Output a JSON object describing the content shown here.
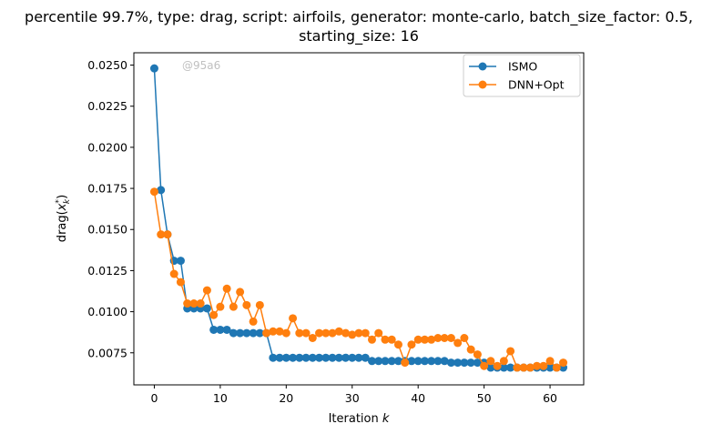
{
  "chart_data": {
    "type": "line",
    "title_line1": "percentile 99.7%, type: drag, script: airfoils, generator: monte-carlo, batch_size_factor: 0.5,",
    "title_line2": "starting_size: 16",
    "xlabel_prefix": "Iteration ",
    "xlabel_var": "k",
    "ylabel_prefix": "drag(",
    "ylabel_var": "x",
    "ylabel_sub": "k",
    "ylabel_sup": "*",
    "ylabel_suffix": ")",
    "watermark": "@95a6",
    "xlim": [
      -3.1,
      65.1
    ],
    "ylim": [
      0.00555,
      0.02575
    ],
    "xticks": [
      0,
      10,
      20,
      30,
      40,
      50,
      60
    ],
    "xtick_labels": [
      "0",
      "10",
      "20",
      "30",
      "40",
      "50",
      "60"
    ],
    "yticks": [
      0.0075,
      0.01,
      0.0125,
      0.015,
      0.0175,
      0.02,
      0.0225,
      0.025
    ],
    "ytick_labels": [
      "0.0075",
      "0.0100",
      "0.0125",
      "0.0150",
      "0.0175",
      "0.0200",
      "0.0225",
      "0.0250"
    ],
    "grid": false,
    "legend_position": "top-right",
    "series": [
      {
        "name": "ISMO",
        "color": "#1f77b4",
        "x": [
          0,
          1,
          2,
          3,
          4,
          5,
          6,
          7,
          8,
          9,
          10,
          11,
          12,
          13,
          14,
          15,
          16,
          17,
          18,
          19,
          20,
          21,
          22,
          23,
          24,
          25,
          26,
          27,
          28,
          29,
          30,
          31,
          32,
          33,
          34,
          35,
          36,
          37,
          38,
          39,
          40,
          41,
          42,
          43,
          44,
          45,
          46,
          47,
          48,
          49,
          50,
          51,
          52,
          53,
          54,
          55,
          56,
          57,
          58,
          59,
          60,
          61,
          62
        ],
        "y": [
          0.0248,
          0.0174,
          0.0147,
          0.0131,
          0.0131,
          0.0102,
          0.0102,
          0.0102,
          0.0102,
          0.0089,
          0.0089,
          0.0089,
          0.0087,
          0.0087,
          0.0087,
          0.0087,
          0.0087,
          0.0087,
          0.0072,
          0.0072,
          0.0072,
          0.0072,
          0.0072,
          0.0072,
          0.0072,
          0.0072,
          0.0072,
          0.0072,
          0.0072,
          0.0072,
          0.0072,
          0.0072,
          0.0072,
          0.007,
          0.007,
          0.007,
          0.007,
          0.007,
          0.007,
          0.007,
          0.007,
          0.007,
          0.007,
          0.007,
          0.007,
          0.0069,
          0.0069,
          0.0069,
          0.0069,
          0.0069,
          0.0069,
          0.0066,
          0.0066,
          0.0066,
          0.0066,
          0.0066,
          0.0066,
          0.0066,
          0.0066,
          0.0066,
          0.0066,
          0.0066,
          0.0066
        ]
      },
      {
        "name": "DNN+Opt",
        "color": "#ff7f0e",
        "x": [
          0,
          1,
          2,
          3,
          4,
          5,
          6,
          7,
          8,
          9,
          10,
          11,
          12,
          13,
          14,
          15,
          16,
          17,
          18,
          19,
          20,
          21,
          22,
          23,
          24,
          25,
          26,
          27,
          28,
          29,
          30,
          31,
          32,
          33,
          34,
          35,
          36,
          37,
          38,
          39,
          40,
          41,
          42,
          43,
          44,
          45,
          46,
          47,
          48,
          49,
          50,
          51,
          52,
          53,
          54,
          55,
          56,
          57,
          58,
          59,
          60,
          61,
          62
        ],
        "y": [
          0.0173,
          0.0147,
          0.0147,
          0.0123,
          0.0118,
          0.0105,
          0.0105,
          0.0105,
          0.0113,
          0.0098,
          0.0103,
          0.0114,
          0.0103,
          0.0112,
          0.0104,
          0.0094,
          0.0104,
          0.0087,
          0.0088,
          0.0088,
          0.0087,
          0.0096,
          0.0087,
          0.0087,
          0.0084,
          0.0087,
          0.0087,
          0.0087,
          0.0088,
          0.0087,
          0.0086,
          0.0087,
          0.0087,
          0.0083,
          0.0087,
          0.0083,
          0.0083,
          0.008,
          0.0069,
          0.008,
          0.0083,
          0.0083,
          0.0083,
          0.0084,
          0.0084,
          0.0084,
          0.0081,
          0.0084,
          0.0077,
          0.0074,
          0.0067,
          0.007,
          0.0067,
          0.007,
          0.0076,
          0.0066,
          0.0066,
          0.0066,
          0.0067,
          0.0067,
          0.007,
          0.0066,
          0.0069
        ]
      }
    ]
  }
}
